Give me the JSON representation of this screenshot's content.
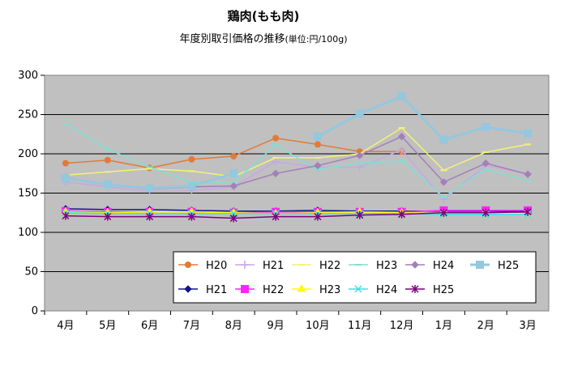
{
  "chart_data": {
    "type": "line",
    "title": "鶏肉(もも肉)",
    "subtitle": "年度別取引価格の推移",
    "subtitle_unit": "(単位:円/100g)",
    "categories": [
      "4月",
      "5月",
      "6月",
      "7月",
      "8月",
      "9月",
      "10月",
      "11月",
      "12月",
      "1月",
      "2月",
      "3月"
    ],
    "ylim": [
      0,
      300
    ],
    "yticks": [
      0,
      50,
      100,
      150,
      200,
      250,
      300
    ],
    "grid": true,
    "legend_position": "bottom-right inside plot",
    "series": [
      {
        "name": "H20",
        "group": "upper",
        "color": "#e07b39",
        "marker": "circle",
        "width": 1.5,
        "values": [
          188,
          192,
          182,
          193,
          197,
          220,
          212,
          203,
          203,
          null,
          null,
          null
        ]
      },
      {
        "name": "H21",
        "group": "upper",
        "color": "#c9a6e6",
        "marker": "plus",
        "width": 1.5,
        "values": [
          164,
          158,
          152,
          153,
          158,
          190,
          183,
          183,
          205,
          142,
          185,
          175
        ]
      },
      {
        "name": "H22",
        "group": "upper",
        "color": "#f2f27a",
        "marker": "dash",
        "width": 1.5,
        "values": [
          173,
          177,
          181,
          178,
          171,
          195,
          195,
          200,
          233,
          179,
          202,
          212
        ]
      },
      {
        "name": "H23",
        "group": "upper",
        "color": "#7fe0d2",
        "marker": "dash",
        "width": 1.5,
        "values": [
          238,
          206,
          183,
          164,
          164,
          211,
          180,
          188,
          191,
          145,
          180,
          166
        ]
      },
      {
        "name": "H24",
        "group": "upper",
        "color": "#a47fb8",
        "marker": "diamond",
        "width": 1.5,
        "values": [
          170,
          161,
          155,
          158,
          159,
          175,
          185,
          198,
          222,
          164,
          188,
          174
        ]
      },
      {
        "name": "H25",
        "group": "upper",
        "color": "#93c8df",
        "marker": "square",
        "width": 3,
        "values": [
          169,
          161,
          156,
          159,
          175,
          null,
          222,
          251,
          273,
          218,
          234,
          226
        ]
      },
      {
        "name": "H21",
        "group": "lower",
        "color": "#14148c",
        "marker": "diamond",
        "width": 1.5,
        "values": [
          130,
          129,
          129,
          128,
          127,
          127,
          128,
          127,
          127,
          127,
          127,
          127
        ]
      },
      {
        "name": "H22",
        "group": "lower",
        "color": "#ff22ff",
        "marker": "square",
        "width": 1.5,
        "values": [
          127,
          126,
          126,
          126,
          125,
          126,
          126,
          126,
          126,
          128,
          128,
          128
        ]
      },
      {
        "name": "H23",
        "group": "lower",
        "color": "#ffff00",
        "marker": "triangle",
        "width": 1.5,
        "values": [
          126,
          125,
          126,
          126,
          125,
          124,
          125,
          126,
          125,
          124,
          124,
          124
        ]
      },
      {
        "name": "H24",
        "group": "lower",
        "color": "#33e6e6",
        "marker": "x",
        "width": 1.5,
        "values": [
          125,
          124,
          124,
          124,
          124,
          124,
          124,
          124,
          124,
          123,
          123,
          123
        ]
      },
      {
        "name": "H25",
        "group": "lower",
        "color": "#800080",
        "marker": "star",
        "width": 1.5,
        "values": [
          121,
          120,
          120,
          120,
          118,
          120,
          120,
          122,
          123,
          125,
          125,
          126
        ]
      }
    ]
  }
}
